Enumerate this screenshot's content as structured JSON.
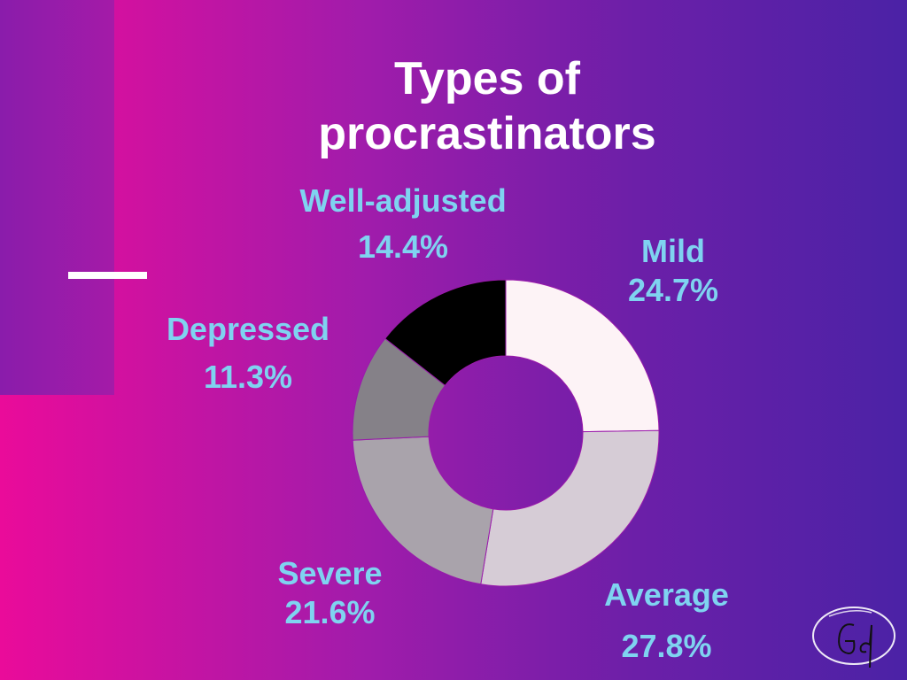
{
  "chart_data": {
    "type": "pie",
    "donut": true,
    "title": "Types of procrastinators",
    "title_lines": [
      "Types of",
      "procrastinators"
    ],
    "slices": [
      {
        "label": "Mild",
        "value": 24.7,
        "value_label": "24.7%",
        "color": "#fdf3f6"
      },
      {
        "label": "Average",
        "value": 27.8,
        "value_label": "27.8%",
        "color": "#d6ccd6"
      },
      {
        "label": "Severe",
        "value": 21.6,
        "value_label": "21.6%",
        "color": "#a9a3ab"
      },
      {
        "label": "Depressed",
        "value": 11.3,
        "value_label": "11.3%",
        "color": "#858188"
      },
      {
        "label": "Well-adjusted",
        "value": 14.4,
        "value_label": "14.4%",
        "color": "#000000"
      }
    ],
    "label_color": "#7fd3f0",
    "start_angle": "12 o'clock",
    "direction": "clockwise"
  },
  "colors": {
    "background_left": "#ea0b9a",
    "background_right": "#4b22a6",
    "title": "#ffffff"
  },
  "icons": {
    "signature": "Gd signature logo"
  }
}
